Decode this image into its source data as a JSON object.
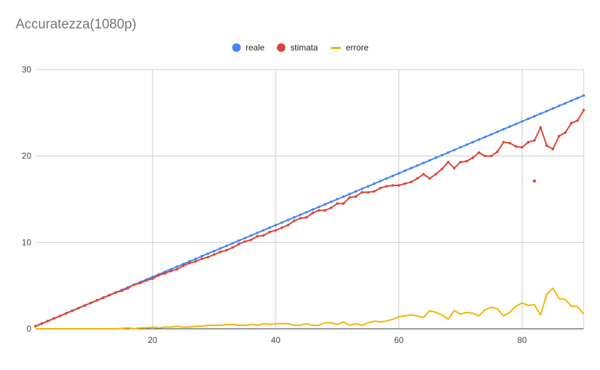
{
  "chart_data": {
    "type": "line",
    "title": "Accuratezza(1080p)",
    "xlabel": "",
    "ylabel": "",
    "xlim": [
      1,
      90
    ],
    "ylim": [
      0,
      30
    ],
    "x_ticks": [
      20,
      40,
      60,
      80
    ],
    "y_ticks": [
      0,
      10,
      20,
      30
    ],
    "grid": true,
    "legend_position": "top",
    "series": [
      {
        "name": "reale",
        "color": "#4285F4",
        "markers": true,
        "points": [
          [
            1,
            0.3
          ],
          [
            2,
            0.6
          ],
          [
            3,
            0.9
          ],
          [
            4,
            1.2
          ],
          [
            5,
            1.5
          ],
          [
            6,
            1.8
          ],
          [
            7,
            2.1
          ],
          [
            8,
            2.4
          ],
          [
            9,
            2.7
          ],
          [
            10,
            3.0
          ],
          [
            11,
            3.3
          ],
          [
            12,
            3.6
          ],
          [
            13,
            3.9
          ],
          [
            14,
            4.2
          ],
          [
            15,
            4.5
          ],
          [
            16,
            4.8
          ],
          [
            17,
            5.1
          ],
          [
            18,
            5.4
          ],
          [
            19,
            5.7
          ],
          [
            20,
            6.0
          ],
          [
            21,
            6.3
          ],
          [
            22,
            6.6
          ],
          [
            23,
            6.9
          ],
          [
            24,
            7.2
          ],
          [
            25,
            7.5
          ],
          [
            26,
            7.8
          ],
          [
            27,
            8.1
          ],
          [
            28,
            8.4
          ],
          [
            29,
            8.7
          ],
          [
            30,
            9.0
          ],
          [
            31,
            9.3
          ],
          [
            32,
            9.6
          ],
          [
            33,
            9.9
          ],
          [
            34,
            10.2
          ],
          [
            35,
            10.5
          ],
          [
            36,
            10.8
          ],
          [
            37,
            11.1
          ],
          [
            38,
            11.4
          ],
          [
            39,
            11.7
          ],
          [
            40,
            12.0
          ],
          [
            41,
            12.3
          ],
          [
            42,
            12.6
          ],
          [
            43,
            12.9
          ],
          [
            44,
            13.2
          ],
          [
            45,
            13.5
          ],
          [
            46,
            13.8
          ],
          [
            47,
            14.1
          ],
          [
            48,
            14.4
          ],
          [
            49,
            14.7
          ],
          [
            50,
            15.0
          ],
          [
            51,
            15.3
          ],
          [
            52,
            15.6
          ],
          [
            53,
            15.9
          ],
          [
            54,
            16.2
          ],
          [
            55,
            16.5
          ],
          [
            56,
            16.8
          ],
          [
            57,
            17.1
          ],
          [
            58,
            17.4
          ],
          [
            59,
            17.7
          ],
          [
            60,
            18.0
          ],
          [
            61,
            18.3
          ],
          [
            62,
            18.6
          ],
          [
            63,
            18.9
          ],
          [
            64,
            19.2
          ],
          [
            65,
            19.5
          ],
          [
            66,
            19.8
          ],
          [
            67,
            20.1
          ],
          [
            68,
            20.4
          ],
          [
            69,
            20.7
          ],
          [
            70,
            21.0
          ],
          [
            71,
            21.3
          ],
          [
            72,
            21.6
          ],
          [
            73,
            21.9
          ],
          [
            74,
            22.2
          ],
          [
            75,
            22.5
          ],
          [
            76,
            22.8
          ],
          [
            77,
            23.1
          ],
          [
            78,
            23.4
          ],
          [
            79,
            23.7
          ],
          [
            80,
            24.0
          ],
          [
            81,
            24.3
          ],
          [
            82,
            24.6
          ],
          [
            83,
            24.9
          ],
          [
            84,
            25.2
          ],
          [
            85,
            25.5
          ],
          [
            86,
            25.8
          ],
          [
            87,
            26.1
          ],
          [
            88,
            26.4
          ],
          [
            89,
            26.7
          ],
          [
            90,
            27.0
          ]
        ]
      },
      {
        "name": "stimata",
        "color": "#DB4437",
        "markers": true,
        "points": [
          [
            1,
            0.3
          ],
          [
            2,
            0.6
          ],
          [
            3,
            0.9
          ],
          [
            4,
            1.2
          ],
          [
            5,
            1.5
          ],
          [
            6,
            1.8
          ],
          [
            7,
            2.1
          ],
          [
            8,
            2.4
          ],
          [
            9,
            2.7
          ],
          [
            10,
            3.0
          ],
          [
            11,
            3.3
          ],
          [
            12,
            3.6
          ],
          [
            13,
            3.9
          ],
          [
            14,
            4.2
          ],
          [
            15,
            4.4
          ],
          [
            16,
            4.7
          ],
          [
            17,
            5.1
          ],
          [
            18,
            5.3
          ],
          [
            19,
            5.6
          ],
          [
            20,
            5.8
          ],
          [
            21,
            6.2
          ],
          [
            22,
            6.4
          ],
          [
            23,
            6.7
          ],
          [
            24,
            6.9
          ],
          [
            25,
            7.3
          ],
          [
            26,
            7.6
          ],
          [
            27,
            7.8
          ],
          [
            28,
            8.1
          ],
          [
            29,
            8.3
          ],
          [
            30,
            8.6
          ],
          [
            31,
            8.9
          ],
          [
            32,
            9.1
          ],
          [
            33,
            9.4
          ],
          [
            34,
            9.8
          ],
          [
            35,
            10.1
          ],
          [
            36,
            10.3
          ],
          [
            37,
            10.7
          ],
          [
            38,
            10.8
          ],
          [
            39,
            11.2
          ],
          [
            40,
            11.4
          ],
          [
            41,
            11.7
          ],
          [
            42,
            12.0
          ],
          [
            43,
            12.5
          ],
          [
            44,
            12.8
          ],
          [
            45,
            12.9
          ],
          [
            46,
            13.4
          ],
          [
            47,
            13.7
          ],
          [
            48,
            13.7
          ],
          [
            49,
            14.0
          ],
          [
            50,
            14.5
          ],
          [
            51,
            14.5
          ],
          [
            52,
            15.2
          ],
          [
            53,
            15.3
          ],
          [
            54,
            15.8
          ],
          [
            55,
            15.8
          ],
          [
            56,
            15.9
          ],
          [
            57,
            16.3
          ],
          [
            58,
            16.5
          ],
          [
            59,
            16.6
          ],
          [
            60,
            16.6
          ],
          [
            61,
            16.8
          ],
          [
            62,
            17.0
          ],
          [
            63,
            17.4
          ],
          [
            64,
            17.9
          ],
          [
            65,
            17.4
          ],
          [
            66,
            17.9
          ],
          [
            67,
            18.5
          ],
          [
            68,
            19.3
          ],
          [
            69,
            18.6
          ],
          [
            70,
            19.3
          ],
          [
            71,
            19.4
          ],
          [
            72,
            19.8
          ],
          [
            73,
            20.4
          ],
          [
            74,
            20.0
          ],
          [
            75,
            20.0
          ],
          [
            76,
            20.5
          ],
          [
            77,
            21.6
          ],
          [
            78,
            21.5
          ],
          [
            79,
            21.1
          ],
          [
            80,
            21.0
          ],
          [
            81,
            21.6
          ],
          [
            82,
            21.8
          ],
          [
            83,
            23.3
          ],
          [
            84,
            21.2
          ],
          [
            85,
            20.8
          ],
          [
            86,
            22.3
          ],
          [
            87,
            22.7
          ],
          [
            88,
            23.8
          ],
          [
            89,
            24.1
          ],
          [
            90,
            25.3
          ]
        ],
        "outliers": [
          [
            82,
            17.1
          ]
        ]
      },
      {
        "name": "errore",
        "color": "#F4B400",
        "markers": false,
        "points": [
          [
            1,
            0.0
          ],
          [
            2,
            0.0
          ],
          [
            3,
            0.0
          ],
          [
            4,
            0.0
          ],
          [
            5,
            0.0
          ],
          [
            6,
            0.0
          ],
          [
            7,
            0.0
          ],
          [
            8,
            0.0
          ],
          [
            9,
            0.0
          ],
          [
            10,
            0.0
          ],
          [
            11,
            0.0
          ],
          [
            12,
            0.0
          ],
          [
            13,
            0.0
          ],
          [
            14,
            0.0
          ],
          [
            15,
            0.05
          ],
          [
            16,
            0.1
          ],
          [
            17,
            0.0
          ],
          [
            18,
            0.1
          ],
          [
            19,
            0.1
          ],
          [
            20,
            0.2
          ],
          [
            21,
            0.1
          ],
          [
            22,
            0.2
          ],
          [
            23,
            0.2
          ],
          [
            24,
            0.3
          ],
          [
            25,
            0.2
          ],
          [
            26,
            0.2
          ],
          [
            27,
            0.3
          ],
          [
            28,
            0.3
          ],
          [
            29,
            0.4
          ],
          [
            30,
            0.4
          ],
          [
            31,
            0.4
          ],
          [
            32,
            0.5
          ],
          [
            33,
            0.5
          ],
          [
            34,
            0.4
          ],
          [
            35,
            0.4
          ],
          [
            36,
            0.5
          ],
          [
            37,
            0.4
          ],
          [
            38,
            0.6
          ],
          [
            39,
            0.5
          ],
          [
            40,
            0.6
          ],
          [
            41,
            0.6
          ],
          [
            42,
            0.6
          ],
          [
            43,
            0.4
          ],
          [
            44,
            0.4
          ],
          [
            45,
            0.6
          ],
          [
            46,
            0.4
          ],
          [
            47,
            0.4
          ],
          [
            48,
            0.7
          ],
          [
            49,
            0.7
          ],
          [
            50,
            0.5
          ],
          [
            51,
            0.8
          ],
          [
            52,
            0.4
          ],
          [
            53,
            0.6
          ],
          [
            54,
            0.4
          ],
          [
            55,
            0.7
          ],
          [
            56,
            0.9
          ],
          [
            57,
            0.8
          ],
          [
            58,
            0.9
          ],
          [
            59,
            1.1
          ],
          [
            60,
            1.4
          ],
          [
            61,
            1.5
          ],
          [
            62,
            1.6
          ],
          [
            63,
            1.5
          ],
          [
            64,
            1.3
          ],
          [
            65,
            2.1
          ],
          [
            66,
            1.9
          ],
          [
            67,
            1.6
          ],
          [
            68,
            1.1
          ],
          [
            69,
            2.1
          ],
          [
            70,
            1.7
          ],
          [
            71,
            1.9
          ],
          [
            72,
            1.8
          ],
          [
            73,
            1.5
          ],
          [
            74,
            2.2
          ],
          [
            75,
            2.5
          ],
          [
            76,
            2.3
          ],
          [
            77,
            1.5
          ],
          [
            78,
            1.9
          ],
          [
            79,
            2.6
          ],
          [
            80,
            3.0
          ],
          [
            81,
            2.7
          ],
          [
            82,
            2.8
          ],
          [
            83,
            1.6
          ],
          [
            84,
            4.0
          ],
          [
            85,
            4.7
          ],
          [
            86,
            3.5
          ],
          [
            87,
            3.4
          ],
          [
            88,
            2.6
          ],
          [
            89,
            2.6
          ],
          [
            90,
            1.7
          ]
        ]
      }
    ]
  }
}
